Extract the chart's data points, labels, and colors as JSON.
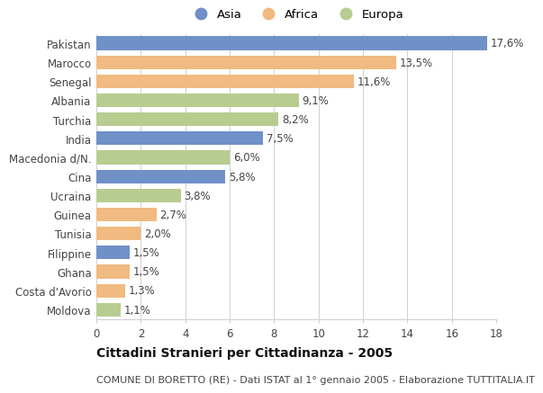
{
  "countries": [
    "Pakistan",
    "Marocco",
    "Senegal",
    "Albania",
    "Turchia",
    "India",
    "Macedonia d/N.",
    "Cina",
    "Ucraina",
    "Guinea",
    "Tunisia",
    "Filippine",
    "Ghana",
    "Costa d'Avorio",
    "Moldova"
  ],
  "values": [
    17.6,
    13.5,
    11.6,
    9.1,
    8.2,
    7.5,
    6.0,
    5.8,
    3.8,
    2.7,
    2.0,
    1.5,
    1.5,
    1.3,
    1.1
  ],
  "labels": [
    "17,6%",
    "13,5%",
    "11,6%",
    "9,1%",
    "8,2%",
    "7,5%",
    "6,0%",
    "5,8%",
    "3,8%",
    "2,7%",
    "2,0%",
    "1,5%",
    "1,5%",
    "1,3%",
    "1,1%"
  ],
  "continents": [
    "Asia",
    "Africa",
    "Africa",
    "Europa",
    "Europa",
    "Asia",
    "Europa",
    "Asia",
    "Europa",
    "Africa",
    "Africa",
    "Asia",
    "Africa",
    "Africa",
    "Europa"
  ],
  "colors": {
    "Asia": "#7090c8",
    "Africa": "#f0ba80",
    "Europa": "#b8cc90"
  },
  "title": "Cittadini Stranieri per Cittadinanza - 2005",
  "subtitle": "COMUNE DI BORETTO (RE) - Dati ISTAT al 1° gennaio 2005 - Elaborazione TUTTITALIA.IT",
  "xlim": [
    0,
    18
  ],
  "xticks": [
    0,
    2,
    4,
    6,
    8,
    10,
    12,
    14,
    16,
    18
  ],
  "background_color": "#ffffff",
  "grid_color": "#d0d0d0",
  "bar_height": 0.72,
  "legend_labels": [
    "Asia",
    "Africa",
    "Europa"
  ],
  "label_fontsize": 8.5,
  "value_fontsize": 8.5,
  "title_fontsize": 10,
  "subtitle_fontsize": 8
}
